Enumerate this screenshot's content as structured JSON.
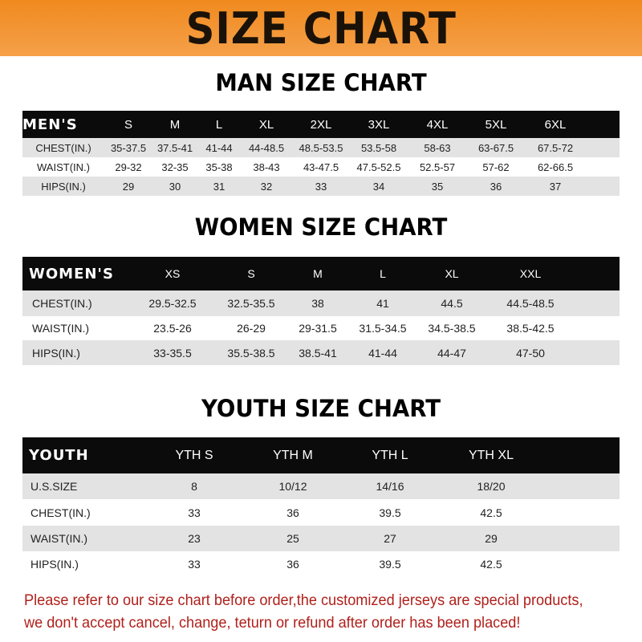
{
  "banner_title": "SIZE CHART",
  "men": {
    "title": "MAN SIZE CHART",
    "header": [
      "MEN'S",
      "S",
      "M",
      "L",
      "XL",
      "2XL",
      "3XL",
      "4XL",
      "5XL",
      "6XL"
    ],
    "rows": [
      [
        "CHEST(IN.)",
        "35-37.5",
        "37.5-41",
        "41-44",
        "44-48.5",
        "48.5-53.5",
        "53.5-58",
        "58-63",
        "63-67.5",
        "67.5-72"
      ],
      [
        "WAIST(IN.)",
        "29-32",
        "32-35",
        "35-38",
        "38-43",
        "43-47.5",
        "47.5-52.5",
        "52.5-57",
        "57-62",
        "62-66.5"
      ],
      [
        "HIPS(IN.)",
        "29",
        "30",
        "31",
        "32",
        "33",
        "34",
        "35",
        "36",
        "37"
      ]
    ]
  },
  "women": {
    "title": "WOMEN SIZE CHART",
    "header": [
      "WOMEN'S",
      "XS",
      "S",
      "M",
      "L",
      "XL",
      "XXL"
    ],
    "rows": [
      [
        "CHEST(IN.)",
        "29.5-32.5",
        "32.5-35.5",
        "38",
        "41",
        "44.5",
        "44.5-48.5"
      ],
      [
        "WAIST(IN.)",
        "23.5-26",
        "26-29",
        "29-31.5",
        "31.5-34.5",
        "34.5-38.5",
        "38.5-42.5"
      ],
      [
        "HIPS(IN.)",
        "33-35.5",
        "35.5-38.5",
        "38.5-41",
        "41-44",
        "44-47",
        "47-50"
      ]
    ]
  },
  "youth": {
    "title": "YOUTH SIZE CHART",
    "header": [
      "YOUTH",
      "YTH S",
      "YTH M",
      "YTH L",
      "YTH XL"
    ],
    "rows": [
      [
        "U.S.SIZE",
        "8",
        "10/12",
        "14/16",
        "18/20"
      ],
      [
        "CHEST(IN.)",
        "33",
        "36",
        "39.5",
        "42.5"
      ],
      [
        "WAIST(IN.)",
        "23",
        "25",
        "27",
        "29"
      ],
      [
        "HIPS(IN.)",
        "33",
        "36",
        "39.5",
        "42.5"
      ]
    ]
  },
  "note": {
    "line1": "Please refer to our size chart before order,the customized jerseys are special products,",
    "line2": "we don't accept cancel, change, teturn or refund after order has been placed!"
  },
  "colors": {
    "banner": "#f08a1e",
    "header_row": "#0b0b0b",
    "note": "#b0201b"
  }
}
